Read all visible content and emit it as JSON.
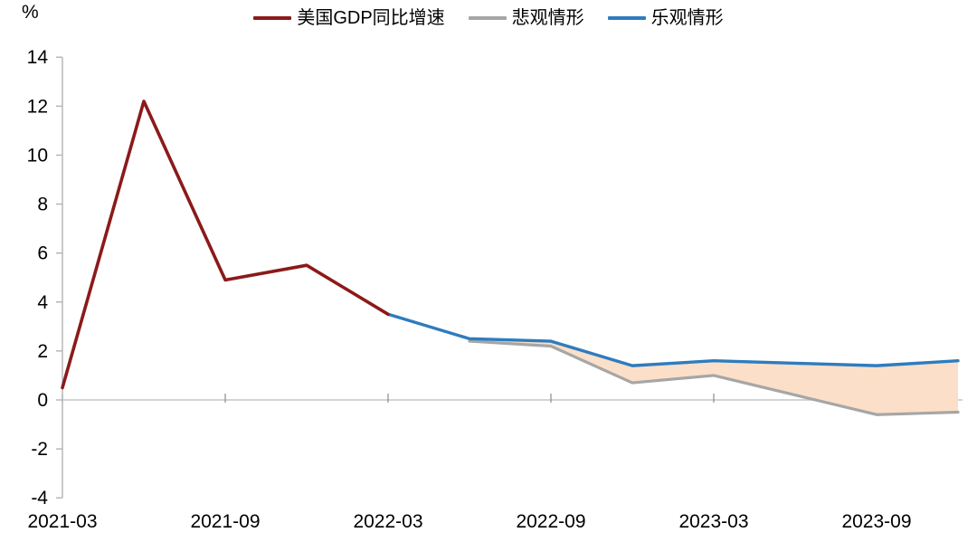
{
  "unit_label": "%",
  "chart_data": {
    "type": "line",
    "title": "",
    "unit": "%",
    "x_categories": [
      "2021-03",
      "2021-06",
      "2021-09",
      "2021-12",
      "2022-03",
      "2022-06",
      "2022-09",
      "2022-12",
      "2023-03",
      "2023-06",
      "2023-09",
      "2023-12"
    ],
    "x_axis_tick_labels": [
      "2021-03",
      "2021-09",
      "2022-03",
      "2022-09",
      "2023-03",
      "2023-09"
    ],
    "ylim": [
      -4,
      14
    ],
    "y_ticks": [
      14,
      12,
      10,
      8,
      6,
      4,
      2,
      0,
      "-2",
      "-4"
    ],
    "y_tick_values": [
      14,
      12,
      10,
      8,
      6,
      4,
      2,
      0,
      -2,
      -4
    ],
    "grid": "zero-line-only",
    "legend_position": "top-center",
    "series": [
      {
        "name": "美国GDP同比增速",
        "color": "#8b1a1a",
        "line_width": 3.6,
        "x": [
          "2021-03",
          "2021-06",
          "2021-09",
          "2021-12",
          "2022-03"
        ],
        "values": [
          0.5,
          12.2,
          4.9,
          5.5,
          3.5
        ]
      },
      {
        "name": "悲观情形",
        "color": "#a6a6a6",
        "line_width": 3.2,
        "x": [
          "2022-06",
          "2022-09",
          "2022-12",
          "2023-03",
          "2023-06",
          "2023-09",
          "2023-12"
        ],
        "values": [
          2.4,
          2.2,
          0.7,
          1.0,
          0.2,
          -0.6,
          -0.5
        ]
      },
      {
        "name": "乐观情形",
        "color": "#2e7cbe",
        "line_width": 3.4,
        "x": [
          "2022-03",
          "2022-06",
          "2022-09",
          "2022-12",
          "2023-03",
          "2023-06",
          "2023-09",
          "2023-12"
        ],
        "values": [
          3.5,
          2.5,
          2.4,
          1.4,
          1.6,
          1.5,
          1.4,
          1.6
        ]
      }
    ],
    "band": {
      "upper_series": "乐观情形",
      "lower_series": "悲观情形",
      "x_start": "2022-06",
      "x_end": "2023-12",
      "fill_color": "#fbdfc8"
    },
    "legend": [
      {
        "label": "美国GDP同比增速",
        "color": "#8b1a1a"
      },
      {
        "label": "悲观情形",
        "color": "#a6a6a6"
      },
      {
        "label": "乐观情形",
        "color": "#2e7cbe"
      }
    ],
    "axis_colors": {
      "y_axis_line": "#b3b3b3",
      "zero_gridline": "#c6c6c6",
      "x_tick": "#8c8c8c",
      "label_text": "#000000"
    }
  }
}
